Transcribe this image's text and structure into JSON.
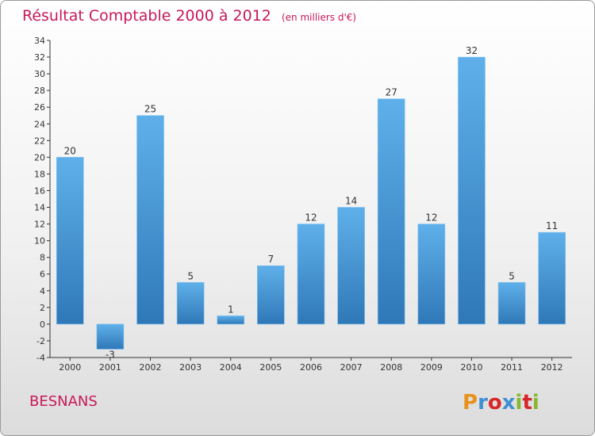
{
  "header": {
    "title": "Résultat Comptable 2000 à 2012",
    "subtitle": "(en milliers d'€)"
  },
  "footer": {
    "town": "BESNANS",
    "brand": "Proxiti"
  },
  "colors": {
    "title": "#c8185a",
    "bar_light": "#5fb0ea",
    "bar_dark": "#2f78b8",
    "axis": "#333333",
    "logo": [
      "#e8921d",
      "#3f8fd2",
      "#d7262a",
      "#3f8fd2",
      "#86b831",
      "#d7262a",
      "#86b831"
    ]
  },
  "chart_data": {
    "type": "bar",
    "title": "Résultat Comptable 2000 à 2012",
    "subtitle": "(en milliers d'€)",
    "xlabel": "",
    "ylabel": "",
    "categories": [
      "2000",
      "2001",
      "2002",
      "2003",
      "2004",
      "2005",
      "2006",
      "2007",
      "2008",
      "2009",
      "2010",
      "2011",
      "2012"
    ],
    "values": [
      20,
      -3,
      25,
      5,
      1,
      7,
      12,
      14,
      27,
      12,
      32,
      5,
      11
    ],
    "ylim": [
      -4,
      34
    ],
    "yticks": [
      -4,
      -2,
      0,
      2,
      4,
      6,
      8,
      10,
      12,
      14,
      16,
      18,
      20,
      22,
      24,
      26,
      28,
      30,
      32,
      34
    ],
    "grid": false,
    "data_labels": true
  }
}
